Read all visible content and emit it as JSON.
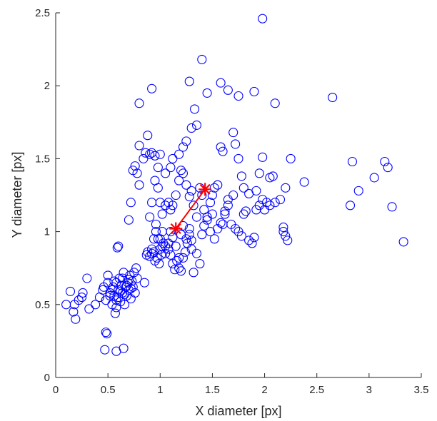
{
  "chart_data": {
    "type": "scatter",
    "xlabel": "X diameter [px]",
    "ylabel": "Y diameter [px]",
    "xlim": [
      0,
      3.5
    ],
    "ylim": [
      0,
      2.5
    ],
    "xticks": [
      0,
      0.5,
      1,
      1.5,
      2,
      2.5,
      3,
      3.5
    ],
    "xtick_labels": [
      "0",
      "0.5",
      "1",
      "1.5",
      "2",
      "2.5",
      "3",
      "3.5"
    ],
    "yticks": [
      0,
      0.5,
      1,
      1.5,
      2,
      2.5
    ],
    "ytick_labels": [
      "0",
      "0.5",
      "1",
      "1.5",
      "2",
      "2.5"
    ],
    "grid": false,
    "series": [
      {
        "marker": "circle",
        "color": "#0000ff",
        "points": [
          [
            0.1,
            0.5
          ],
          [
            0.14,
            0.59
          ],
          [
            0.17,
            0.45
          ],
          [
            0.18,
            0.5
          ],
          [
            0.19,
            0.4
          ],
          [
            0.22,
            0.53
          ],
          [
            0.25,
            0.55
          ],
          [
            0.26,
            0.58
          ],
          [
            0.3,
            0.68
          ],
          [
            0.32,
            0.47
          ],
          [
            0.38,
            0.5
          ],
          [
            0.42,
            0.55
          ],
          [
            0.45,
            0.6
          ],
          [
            0.46,
            0.62
          ],
          [
            0.48,
            0.53
          ],
          [
            0.5,
            0.65
          ],
          [
            0.5,
            0.7
          ],
          [
            0.52,
            0.58
          ],
          [
            0.54,
            0.5
          ],
          [
            0.55,
            0.62
          ],
          [
            0.56,
            0.56
          ],
          [
            0.57,
            0.44
          ],
          [
            0.58,
            0.48
          ],
          [
            0.58,
            0.65
          ],
          [
            0.6,
            0.55
          ],
          [
            0.6,
            0.6
          ],
          [
            0.61,
            0.68
          ],
          [
            0.62,
            0.52
          ],
          [
            0.63,
            0.63
          ],
          [
            0.64,
            0.58
          ],
          [
            0.65,
            0.72
          ],
          [
            0.66,
            0.5
          ],
          [
            0.67,
            0.62
          ],
          [
            0.68,
            0.56
          ],
          [
            0.69,
            0.65
          ],
          [
            0.7,
            0.6
          ],
          [
            0.71,
            0.7
          ],
          [
            0.72,
            0.54
          ],
          [
            0.73,
            0.66
          ],
          [
            0.74,
            0.62
          ],
          [
            0.75,
            0.72
          ],
          [
            0.76,
            0.58
          ],
          [
            0.77,
            0.75
          ],
          [
            0.78,
            0.68
          ],
          [
            0.52,
            0.56
          ],
          [
            0.54,
            0.6
          ],
          [
            0.56,
            0.66
          ],
          [
            0.58,
            0.53
          ],
          [
            0.62,
            0.59
          ],
          [
            0.64,
            0.68
          ],
          [
            0.66,
            0.57
          ],
          [
            0.68,
            0.63
          ],
          [
            0.7,
            0.67
          ],
          [
            0.72,
            0.61
          ],
          [
            0.48,
            0.31
          ],
          [
            0.49,
            0.3
          ],
          [
            0.47,
            0.19
          ],
          [
            0.58,
            0.18
          ],
          [
            0.65,
            0.2
          ],
          [
            0.6,
            0.9
          ],
          [
            0.59,
            0.89
          ],
          [
            0.85,
            0.65
          ],
          [
            0.87,
            0.84
          ],
          [
            0.88,
            0.86
          ],
          [
            0.9,
            0.83
          ],
          [
            0.92,
            0.85
          ],
          [
            0.95,
            0.8
          ],
          [
            0.98,
            0.95
          ],
          [
            1.0,
            0.88
          ],
          [
            1.02,
            0.9
          ],
          [
            1.05,
            0.85
          ],
          [
            1.08,
            0.92
          ],
          [
            1.1,
            1.0
          ],
          [
            1.12,
            0.96
          ],
          [
            1.15,
            0.9
          ],
          [
            1.18,
            0.82
          ],
          [
            1.2,
            0.98
          ],
          [
            1.22,
            1.04
          ],
          [
            1.25,
            0.95
          ],
          [
            1.28,
            1.02
          ],
          [
            1.3,
            0.88
          ],
          [
            1.32,
            0.72
          ],
          [
            1.35,
            0.85
          ],
          [
            1.38,
            0.78
          ],
          [
            1.4,
            0.98
          ],
          [
            1.42,
            1.04
          ],
          [
            1.45,
            1.08
          ],
          [
            1.48,
            1.0
          ],
          [
            1.5,
            1.12
          ],
          [
            1.52,
            0.95
          ],
          [
            1.55,
            1.02
          ],
          [
            1.58,
            1.06
          ],
          [
            1.6,
            1.05
          ],
          [
            1.62,
            1.14
          ],
          [
            1.65,
            1.18
          ],
          [
            1.68,
            1.05
          ],
          [
            1.7,
            1.25
          ],
          [
            1.72,
            1.02
          ],
          [
            1.75,
            1.0
          ],
          [
            1.78,
            0.97
          ],
          [
            1.8,
            1.12
          ],
          [
            1.82,
            1.14
          ],
          [
            1.85,
            1.26
          ],
          [
            1.88,
            0.92
          ],
          [
            1.9,
            0.96
          ],
          [
            1.92,
            1.28
          ],
          [
            1.95,
            1.18
          ],
          [
            1.98,
            1.22
          ],
          [
            2.0,
            1.15
          ],
          [
            2.02,
            1.2
          ],
          [
            2.05,
            1.18
          ],
          [
            2.08,
            1.38
          ],
          [
            2.1,
            1.2
          ],
          [
            2.15,
            1.22
          ],
          [
            2.18,
            1.0
          ],
          [
            2.2,
            0.97
          ],
          [
            2.22,
            0.94
          ],
          [
            2.18,
            1.03
          ],
          [
            2.2,
            1.3
          ],
          [
            2.25,
            1.5
          ],
          [
            2.38,
            1.34
          ],
          [
            1.92,
            1.15
          ],
          [
            1.95,
            1.4
          ],
          [
            1.98,
            1.51
          ],
          [
            2.05,
            1.37
          ],
          [
            2.1,
            1.88
          ],
          [
            1.98,
            2.46
          ],
          [
            1.9,
            1.96
          ],
          [
            1.75,
            1.93
          ],
          [
            1.65,
            1.97
          ],
          [
            1.58,
            2.02
          ],
          [
            1.45,
            1.95
          ],
          [
            1.4,
            2.18
          ],
          [
            1.28,
            2.03
          ],
          [
            1.33,
            1.84
          ],
          [
            1.35,
            1.73
          ],
          [
            1.3,
            1.71
          ],
          [
            1.25,
            1.62
          ],
          [
            1.22,
            1.58
          ],
          [
            1.18,
            1.53
          ],
          [
            1.12,
            1.5
          ],
          [
            1.1,
            1.44
          ],
          [
            1.05,
            1.4
          ],
          [
            1.0,
            1.53
          ],
          [
            0.98,
            1.44
          ],
          [
            0.95,
            1.52
          ],
          [
            0.92,
            1.54
          ],
          [
            0.9,
            1.53
          ],
          [
            0.88,
            1.66
          ],
          [
            0.86,
            1.54
          ],
          [
            0.84,
            1.5
          ],
          [
            0.8,
            1.59
          ],
          [
            0.78,
            1.4
          ],
          [
            0.76,
            1.45
          ],
          [
            0.74,
            1.42
          ],
          [
            0.72,
            1.2
          ],
          [
            0.7,
            1.08
          ],
          [
            0.8,
            1.32
          ],
          [
            0.8,
            1.88
          ],
          [
            0.92,
            1.98
          ],
          [
            0.95,
            1.35
          ],
          [
            0.98,
            1.3
          ],
          [
            1.0,
            1.2
          ],
          [
            1.02,
            1.12
          ],
          [
            1.05,
            1.18
          ],
          [
            1.08,
            1.2
          ],
          [
            1.1,
            1.15
          ],
          [
            1.12,
            1.18
          ],
          [
            1.15,
            1.25
          ],
          [
            1.18,
            1.35
          ],
          [
            1.2,
            1.42
          ],
          [
            1.22,
            1.4
          ],
          [
            1.25,
            1.32
          ],
          [
            1.28,
            1.24
          ],
          [
            1.3,
            1.28
          ],
          [
            1.32,
            1.18
          ],
          [
            1.35,
            1.1
          ],
          [
            1.38,
            1.3
          ],
          [
            1.4,
            1.25
          ],
          [
            1.42,
            1.15
          ],
          [
            1.45,
            1.1
          ],
          [
            1.48,
            1.2
          ],
          [
            1.5,
            1.25
          ],
          [
            1.52,
            1.3
          ],
          [
            1.55,
            1.32
          ],
          [
            1.58,
            1.58
          ],
          [
            1.6,
            1.55
          ],
          [
            1.62,
            1.12
          ],
          [
            1.65,
            1.22
          ],
          [
            1.7,
            1.68
          ],
          [
            1.72,
            1.6
          ],
          [
            1.75,
            1.5
          ],
          [
            1.78,
            1.38
          ],
          [
            1.8,
            1.3
          ],
          [
            1.85,
            0.94
          ],
          [
            1.0,
            0.95
          ],
          [
            1.02,
            1.0
          ],
          [
            1.05,
            0.9
          ],
          [
            1.08,
            0.88
          ],
          [
            1.1,
            0.84
          ],
          [
            1.12,
            0.78
          ],
          [
            1.14,
            0.74
          ],
          [
            1.16,
            0.8
          ],
          [
            1.18,
            0.75
          ],
          [
            1.2,
            0.73
          ],
          [
            1.22,
            0.82
          ],
          [
            1.24,
            0.86
          ],
          [
            1.26,
            0.92
          ],
          [
            1.28,
            0.98
          ],
          [
            1.3,
            0.94
          ],
          [
            0.96,
            1.0
          ],
          [
            0.92,
            0.88
          ],
          [
            0.94,
            0.86
          ],
          [
            0.97,
            0.82
          ],
          [
            0.99,
            0.78
          ],
          [
            1.01,
            0.84
          ],
          [
            1.03,
            0.92
          ],
          [
            0.9,
            1.1
          ],
          [
            0.92,
            1.2
          ],
          [
            0.94,
            0.95
          ],
          [
            0.96,
            1.05
          ],
          [
            2.65,
            1.92
          ],
          [
            2.82,
            1.18
          ],
          [
            2.84,
            1.48
          ],
          [
            2.9,
            1.28
          ],
          [
            3.05,
            1.37
          ],
          [
            3.15,
            1.48
          ],
          [
            3.18,
            1.44
          ],
          [
            3.22,
            1.17
          ],
          [
            3.33,
            0.93
          ]
        ]
      },
      {
        "marker": "star",
        "color": "#ff0000",
        "line": true,
        "points": [
          [
            1.15,
            1.02
          ],
          [
            1.43,
            1.29
          ]
        ]
      }
    ]
  }
}
